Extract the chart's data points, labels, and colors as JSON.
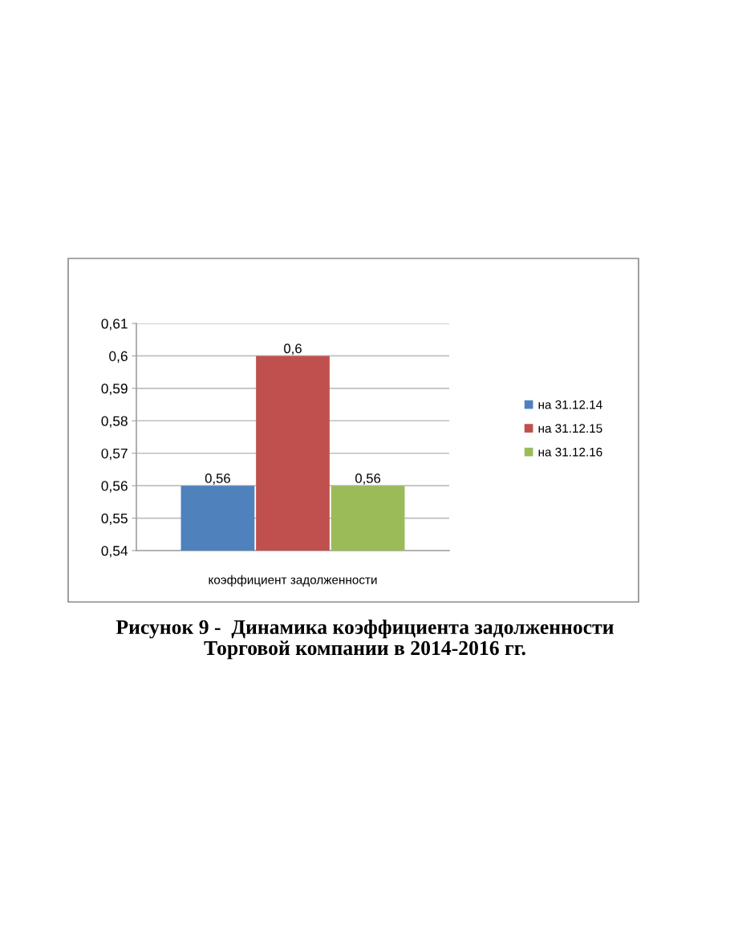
{
  "chart_data": {
    "type": "bar",
    "title": "Рисунок 9 -  Динамика коэффициента задолженности\nТорговой компании в 2014-2016 гг.",
    "categories": [
      "коэффициент задолженности"
    ],
    "series": [
      {
        "name": "на 31.12.14",
        "color": "#4f81bd",
        "values": [
          0.56
        ],
        "value_labels": [
          "0,56"
        ]
      },
      {
        "name": "на 31.12.15",
        "color": "#c0504d",
        "values": [
          0.6
        ],
        "value_labels": [
          "0,6"
        ]
      },
      {
        "name": "на 31.12.16",
        "color": "#9bbb59",
        "values": [
          0.56
        ],
        "value_labels": [
          "0,56"
        ]
      }
    ],
    "ylim": [
      0.54,
      0.61
    ],
    "yticks": [
      {
        "value": 0.54,
        "label": "0,54"
      },
      {
        "value": 0.55,
        "label": "0,55"
      },
      {
        "value": 0.56,
        "label": "0,56"
      },
      {
        "value": 0.57,
        "label": "0,57"
      },
      {
        "value": 0.58,
        "label": "0,58"
      },
      {
        "value": 0.59,
        "label": "0,59"
      },
      {
        "value": 0.6,
        "label": "0,6"
      },
      {
        "value": 0.61,
        "label": "0,61"
      }
    ],
    "grid": "y",
    "legend": "right"
  }
}
